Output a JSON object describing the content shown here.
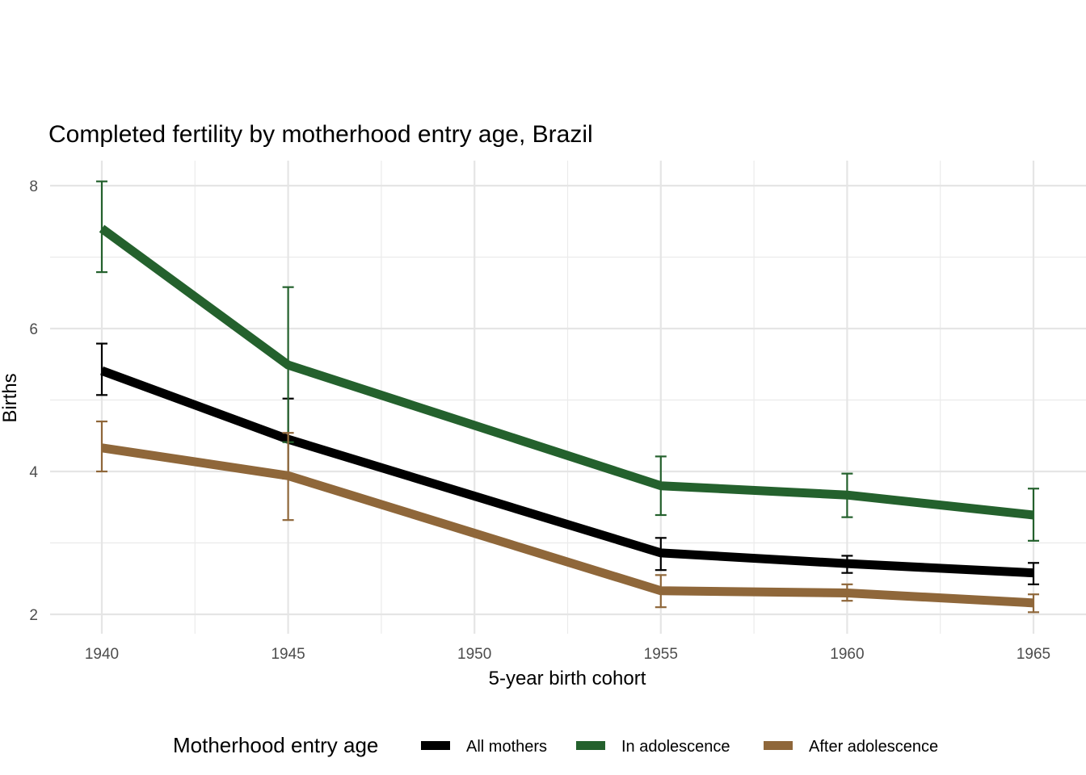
{
  "chart_data": {
    "type": "line",
    "title": "Completed fertility by motherhood entry age,  Brazil",
    "xlabel": "5-year birth cohort",
    "ylabel": "Births",
    "x": [
      1940,
      1945,
      1955,
      1960,
      1965
    ],
    "xlim": [
      1937.3,
      1965.7
    ],
    "ylim": [
      1.7,
      8.35
    ],
    "xticks": [
      1940,
      1945,
      1950,
      1955,
      1960,
      1965
    ],
    "xtick_labels": [
      "1940",
      "1945",
      "1950",
      "1955",
      "1960",
      "1965"
    ],
    "yticks": [
      2,
      4,
      6,
      8
    ],
    "ytick_labels": [
      "2",
      "4",
      "6",
      "8"
    ],
    "grid": true,
    "error_bars": true,
    "legend": {
      "title": "Motherhood entry age",
      "position": "bottom",
      "entries": [
        "All mothers",
        "In adolescence",
        "After adolescence"
      ]
    },
    "series": [
      {
        "name": "All mothers",
        "color": "#000000",
        "values": [
          5.41,
          4.45,
          2.86,
          2.71,
          2.58
        ],
        "lower": [
          5.07,
          3.9,
          2.62,
          2.58,
          2.42
        ],
        "upper": [
          5.79,
          5.02,
          3.07,
          2.82,
          2.72
        ]
      },
      {
        "name": "In adolescence",
        "color": "#24612d",
        "values": [
          7.4,
          5.49,
          3.8,
          3.67,
          3.39
        ],
        "lower": [
          6.79,
          4.41,
          3.39,
          3.36,
          3.03
        ],
        "upper": [
          8.06,
          6.58,
          4.21,
          3.97,
          3.76
        ]
      },
      {
        "name": "After adolescence",
        "color": "#8f673a",
        "values": [
          4.33,
          3.94,
          2.33,
          2.3,
          2.16
        ],
        "lower": [
          4.0,
          3.32,
          2.1,
          2.19,
          2.03
        ],
        "upper": [
          4.7,
          4.54,
          2.55,
          2.42,
          2.28
        ]
      }
    ]
  }
}
